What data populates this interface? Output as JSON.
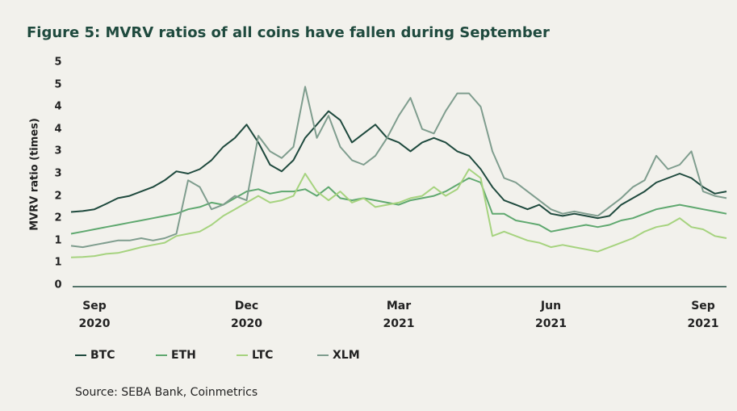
{
  "chart_data": {
    "type": "line",
    "title": "Figure 5: MVRV ratios of all coins have fallen during September",
    "y_label": "MVRV ratio (times)",
    "source": "Source: SEBA Bank, Coinmetrics",
    "categories": [
      null,
      null,
      "Sep 2020",
      null,
      null,
      null,
      null,
      null,
      null,
      null,
      null,
      null,
      null,
      null,
      null,
      "Dec 2020",
      null,
      null,
      null,
      null,
      null,
      null,
      null,
      null,
      null,
      null,
      null,
      null,
      "Mar 2021",
      null,
      null,
      null,
      null,
      null,
      null,
      null,
      null,
      null,
      null,
      null,
      null,
      "Jun 2021",
      null,
      null,
      null,
      null,
      null,
      null,
      null,
      null,
      null,
      null,
      null,
      null,
      "Sep 2021",
      null,
      null
    ],
    "ylim": [
      0,
      5
    ],
    "yticks": [
      0,
      {
        "value": 0.5,
        "label": "1"
      },
      1,
      {
        "value": 1.5,
        "label": "2"
      },
      2,
      {
        "value": 2.5,
        "label": "3"
      },
      3,
      {
        "value": 3.5,
        "label": "4"
      },
      4,
      {
        "value": 4.5,
        "label": "5"
      },
      5
    ],
    "grid": false,
    "legend": "bottom",
    "series": [
      {
        "name": "BTC",
        "color": "#1f4a3e",
        "values": [
          1.64,
          1.66,
          1.7,
          1.82,
          1.95,
          2.0,
          2.1,
          2.2,
          2.35,
          2.55,
          2.5,
          2.6,
          2.8,
          3.1,
          3.3,
          3.6,
          3.2,
          2.7,
          2.55,
          2.8,
          3.3,
          3.6,
          3.9,
          3.7,
          3.2,
          3.4,
          3.6,
          3.3,
          3.2,
          3.0,
          3.2,
          3.3,
          3.2,
          3.0,
          2.9,
          2.6,
          2.2,
          1.9,
          1.8,
          1.7,
          1.8,
          1.6,
          1.55,
          1.6,
          1.55,
          1.5,
          1.55,
          1.8,
          1.95,
          2.1,
          2.3,
          2.4,
          2.5,
          2.4,
          2.2,
          2.05,
          2.1
        ]
      },
      {
        "name": "ETH",
        "color": "#5fa86f",
        "values": [
          1.15,
          1.2,
          1.25,
          1.3,
          1.35,
          1.4,
          1.45,
          1.5,
          1.55,
          1.6,
          1.7,
          1.75,
          1.85,
          1.8,
          1.95,
          2.1,
          2.15,
          2.05,
          2.1,
          2.1,
          2.15,
          2.0,
          2.2,
          1.95,
          1.9,
          1.95,
          1.9,
          1.85,
          1.8,
          1.9,
          1.95,
          2.0,
          2.1,
          2.25,
          2.4,
          2.3,
          1.6,
          1.6,
          1.45,
          1.4,
          1.35,
          1.2,
          1.25,
          1.3,
          1.35,
          1.3,
          1.35,
          1.45,
          1.5,
          1.6,
          1.7,
          1.75,
          1.8,
          1.75,
          1.7,
          1.65,
          1.6
        ]
      },
      {
        "name": "LTC",
        "color": "#a6d37f",
        "values": [
          0.62,
          0.63,
          0.65,
          0.7,
          0.72,
          0.78,
          0.85,
          0.9,
          0.95,
          1.1,
          1.15,
          1.2,
          1.35,
          1.55,
          1.7,
          1.85,
          2.0,
          1.85,
          1.9,
          2.0,
          2.5,
          2.1,
          1.9,
          2.1,
          1.85,
          1.95,
          1.75,
          1.8,
          1.85,
          1.95,
          2.0,
          2.2,
          2.0,
          2.15,
          2.6,
          2.4,
          1.1,
          1.2,
          1.1,
          1.0,
          0.95,
          0.85,
          0.9,
          0.85,
          0.8,
          0.75,
          0.85,
          0.95,
          1.05,
          1.2,
          1.3,
          1.35,
          1.5,
          1.3,
          1.25,
          1.1,
          1.05
        ]
      },
      {
        "name": "XLM",
        "color": "#7f9d8e",
        "values": [
          0.88,
          0.85,
          0.9,
          0.95,
          1.0,
          1.0,
          1.05,
          1.0,
          1.05,
          1.15,
          2.35,
          2.2,
          1.7,
          1.8,
          2.0,
          1.9,
          3.35,
          3.0,
          2.85,
          3.1,
          4.45,
          3.3,
          3.8,
          3.1,
          2.8,
          2.7,
          2.9,
          3.3,
          3.8,
          4.2,
          3.5,
          3.4,
          3.9,
          4.3,
          4.3,
          4.0,
          3.0,
          2.4,
          2.3,
          2.1,
          1.9,
          1.7,
          1.6,
          1.65,
          1.6,
          1.55,
          1.75,
          1.95,
          2.2,
          2.35,
          2.9,
          2.6,
          2.7,
          3.0,
          2.1,
          2.0,
          1.95
        ]
      }
    ]
  }
}
